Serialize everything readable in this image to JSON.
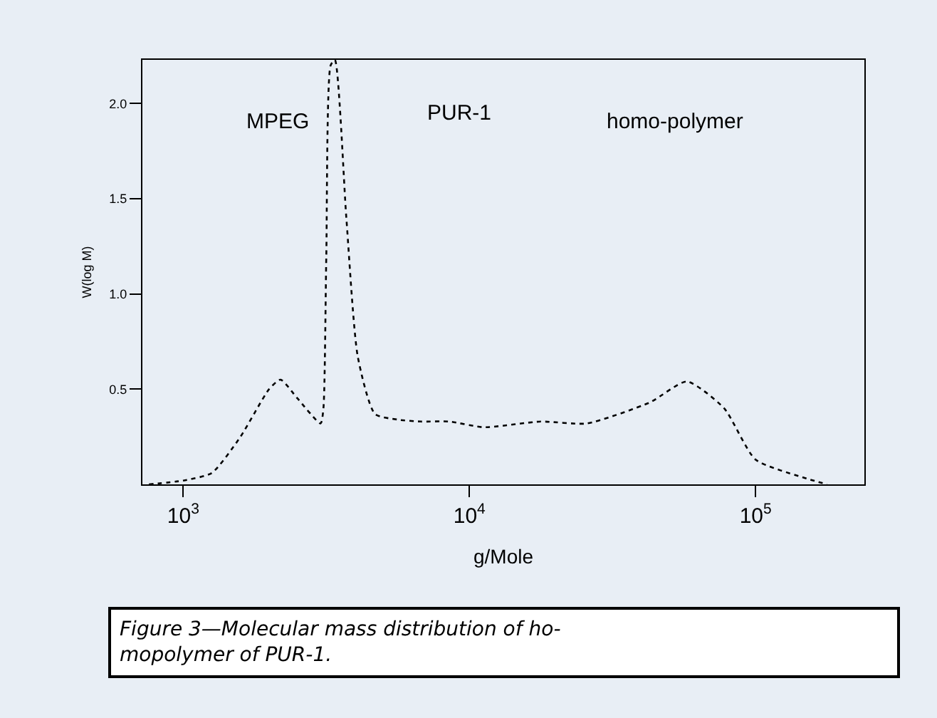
{
  "chart_data": {
    "type": "line",
    "xlabel": "g/Mole",
    "ylabel": "W(log M)",
    "x": [
      759,
      1000,
      1259,
      1585,
      1995,
      2188,
      2512,
      3020,
      3090,
      3162,
      3273,
      3388,
      3715,
      4074,
      4677,
      5623,
      6761,
      8511,
      11220,
      17780,
      25700,
      42660,
      57540,
      77620,
      100000,
      151400,
      177800
    ],
    "series": [
      {
        "color": "#000000",
        "values": [
          0.0,
          0.02,
          0.06,
          0.25,
          0.5,
          0.55,
          0.45,
          0.32,
          0.4,
          1.2,
          2.2,
          2.23,
          1.4,
          0.67,
          0.37,
          0.34,
          0.33,
          0.33,
          0.3,
          0.33,
          0.32,
          0.43,
          0.54,
          0.4,
          0.13,
          0.03,
          0.0
        ]
      }
    ],
    "xlim": [
      720,
      240000
    ],
    "ylim": [
      0,
      2.23
    ],
    "xticks": [
      {
        "value": 1000,
        "label": "10$^{3}$"
      },
      {
        "value": 10000,
        "label": "10$^{4}$"
      },
      {
        "value": 100000,
        "label": "10$^{5}$"
      }
    ],
    "yticks": [
      0.5,
      {
        "value": 1,
        "label": "1.0"
      },
      1.5,
      {
        "value": 2,
        "label": "2.0"
      }
    ],
    "log": "x",
    "grid": false,
    "legend": false,
    "marker": "none",
    "line_style": "dotted",
    "annotations": [
      "MPEG",
      "PUR-1",
      "homo-polymer",
      "Figure 3—Molecular mass distribution of ho-\nmopolymer of PUR-1."
    ]
  }
}
